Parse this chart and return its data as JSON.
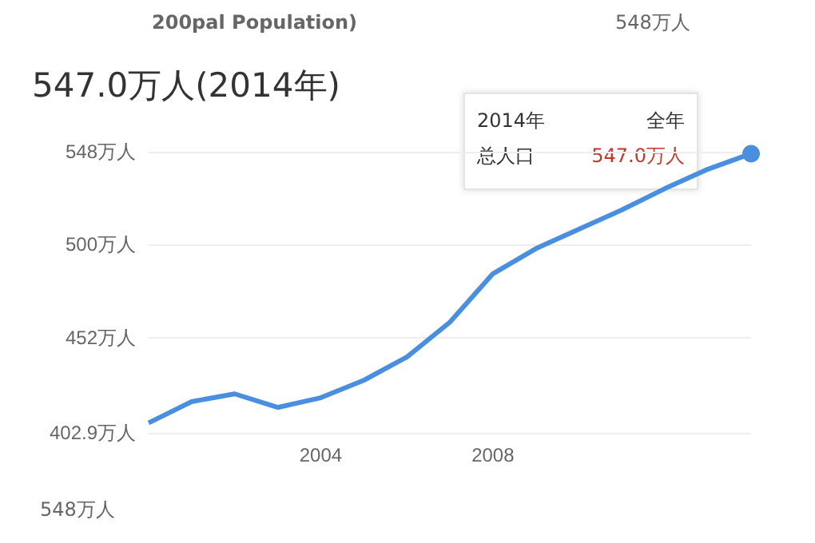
{
  "chart_data": {
    "type": "line",
    "title": "547.0万人(2014年)",
    "annotations": [
      "200pal Population)",
      "548万人",
      "548万人",
      "2014年",
      "全年",
      "总人口",
      "547.0万人"
    ],
    "x": [
      2000,
      2001,
      2002,
      2003,
      2004,
      2005,
      2006,
      2007,
      2008,
      2009,
      2010,
      2011,
      2012,
      2013,
      2014
    ],
    "series": [
      {
        "color": "#4a8ee0",
        "values": [
          408,
          419,
          423,
          416,
          421,
          430,
          442,
          460,
          485,
          498,
          508,
          518,
          529,
          539,
          547.0
        ]
      }
    ],
    "xlim": [
      2000,
      2014
    ],
    "xticks": [
      2004,
      2008
    ],
    "ylim": [
      402.9,
      548
    ],
    "yticks": [
      {
        "value": 402.9,
        "label": "402.9万人"
      },
      {
        "value": 452,
        "label": "452万人"
      },
      {
        "value": 500,
        "label": "500万人"
      },
      {
        "value": 548,
        "label": "548万人"
      }
    ],
    "grid": "y",
    "marker": "none",
    "line_style": "solid"
  }
}
